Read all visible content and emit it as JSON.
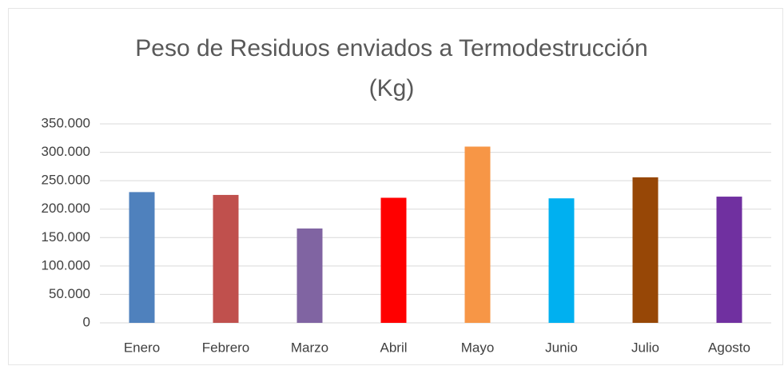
{
  "chart_data": {
    "type": "bar",
    "title": "Peso de Residuos enviados a Termodestrucción (Kg)",
    "categories": [
      "Enero",
      "Febrero",
      "Marzo",
      "Abril",
      "Mayo",
      "Junio",
      "Julio",
      "Agosto"
    ],
    "values": [
      230000,
      225000,
      166000,
      220000,
      310000,
      219000,
      256000,
      222000
    ],
    "colors": [
      "#4f81bd",
      "#c0504d",
      "#8064a2",
      "#ff0000",
      "#f79646",
      "#00b0f0",
      "#974706",
      "#7030a0"
    ],
    "ylim": [
      0,
      350000
    ],
    "yticks": [
      0,
      {
        "value": 50000,
        "label": "50.000"
      },
      {
        "value": 100000,
        "label": "100.000"
      },
      {
        "value": 150000,
        "label": "150.000"
      },
      {
        "value": 200000,
        "label": "200.000"
      },
      {
        "value": 250000,
        "label": "250.000"
      },
      {
        "value": 300000,
        "label": "300.000"
      },
      {
        "value": 350000,
        "label": "350.000"
      }
    ],
    "grid": true
  }
}
